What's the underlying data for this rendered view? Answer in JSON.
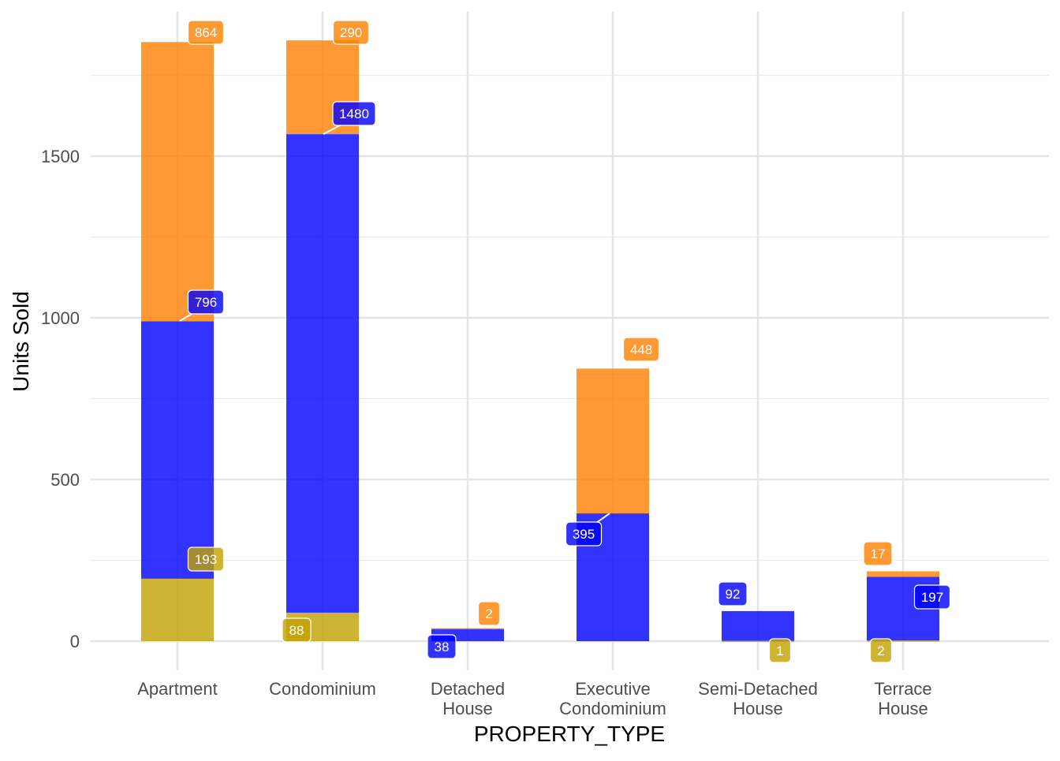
{
  "chart_data": {
    "type": "bar",
    "stacked": true,
    "title": "",
    "xlabel": "PROPERTY_TYPE",
    "ylabel": "Units Sold",
    "categories": [
      "Apartment",
      "Condominium",
      "Detached House",
      "Executive Condominium",
      "Semi-Detached House",
      "Terrace House"
    ],
    "category_lines": [
      [
        "Apartment"
      ],
      [
        "Condominium"
      ],
      [
        "Detached",
        "House"
      ],
      [
        "Executive",
        "Condominium"
      ],
      [
        "Semi-Detached",
        "House"
      ],
      [
        "Terrace",
        "House"
      ]
    ],
    "series": [
      {
        "name": "gold",
        "color": "#c2a100",
        "values": [
          193,
          88,
          0,
          0,
          1,
          2
        ]
      },
      {
        "name": "blue",
        "color": "#0000ff",
        "values": [
          796,
          1480,
          38,
          395,
          92,
          197
        ]
      },
      {
        "name": "orange",
        "color": "#ff7f00",
        "values": [
          864,
          290,
          2,
          448,
          0,
          17
        ]
      }
    ],
    "ylim": [
      0,
      1946
    ],
    "yticks": [
      0,
      500,
      1000,
      1500
    ],
    "yminor": [
      250,
      750,
      1250,
      1750
    ],
    "grid": true,
    "legend": "none"
  }
}
